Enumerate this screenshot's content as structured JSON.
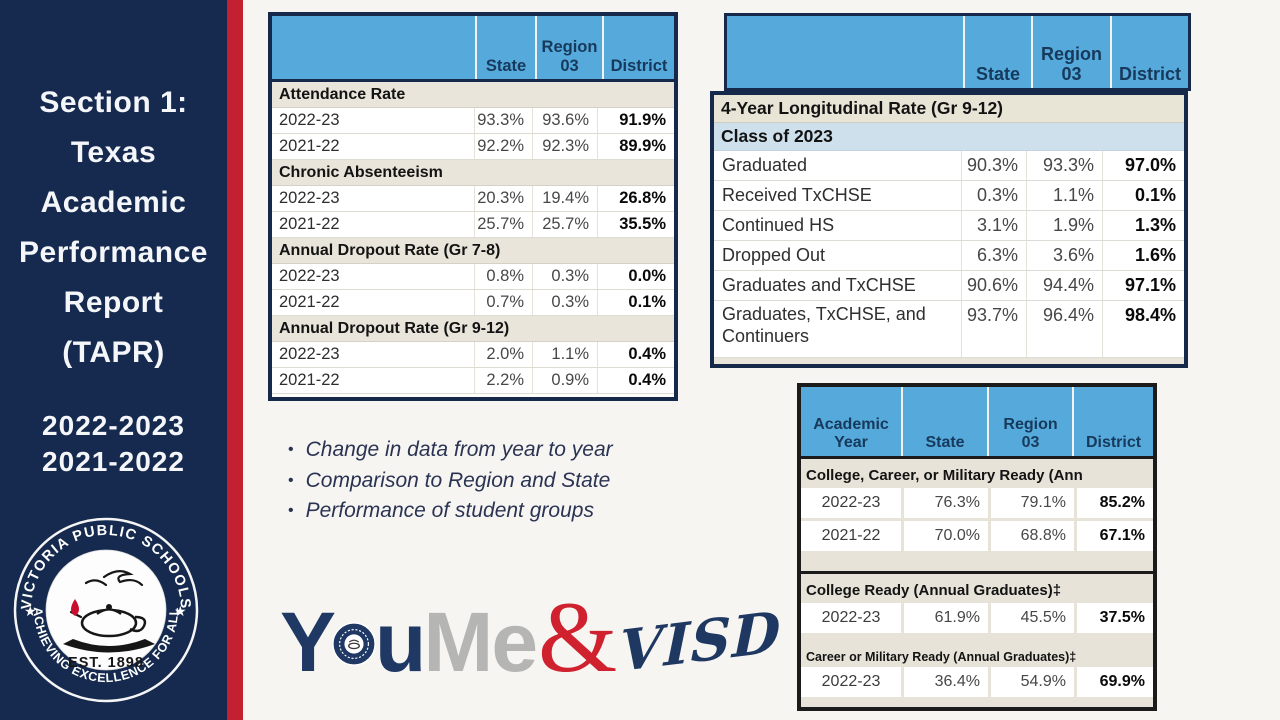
{
  "sidebar": {
    "title_lines": [
      "Section 1:",
      "Texas",
      "Academic",
      "Performance",
      "Report",
      "(TAPR)"
    ],
    "years": [
      "2022-2023",
      "2021-2022"
    ],
    "seal": {
      "arc_top": "VICTORIA PUBLIC SCHOOLS",
      "arc_bottom": "ACHIEVING EXCELLENCE FOR ALL",
      "est": "EST. 1898",
      "star": "★"
    }
  },
  "bullets": [
    "Change in data from year to year",
    "Comparison to Region and State",
    "Performance of student groups"
  ],
  "logo": {
    "you": "Y",
    "u": "u",
    "me": "Me",
    "amp": "&",
    "visd": "VISD"
  },
  "colors": {
    "sidebar_navy": "#152a4e",
    "stripe_red": "#c32032",
    "header_blue": "#55aadb",
    "header_text_navy": "#17395c",
    "section_beige": "#e9e5da",
    "class_row_blue": "#cfe0ed",
    "table_border_navy": "#16294b",
    "table_border_black": "#1b1b1b",
    "logo_red": "#d0212f",
    "logo_gray": "#b5b5b3"
  },
  "tables": {
    "rates": {
      "header": [
        "",
        "State",
        "Region\n03",
        "District"
      ],
      "body": [
        {
          "t": "sec",
          "text": "Attendance Rate"
        },
        {
          "t": "row",
          "cells": [
            "2022-23",
            "93.3%",
            "93.6%",
            "91.9%"
          ]
        },
        {
          "t": "row",
          "cells": [
            "2021-22",
            "92.2%",
            "92.3%",
            "89.9%"
          ]
        },
        {
          "t": "sec",
          "text": "Chronic Absenteeism"
        },
        {
          "t": "row",
          "cells": [
            "2022-23",
            "20.3%",
            "19.4%",
            "26.8%"
          ]
        },
        {
          "t": "row",
          "cells": [
            "2021-22",
            "25.7%",
            "25.7%",
            "35.5%"
          ]
        },
        {
          "t": "sec",
          "text": "Annual Dropout Rate (Gr 7-8)"
        },
        {
          "t": "row",
          "cells": [
            "2022-23",
            "0.8%",
            "0.3%",
            "0.0%"
          ]
        },
        {
          "t": "row",
          "cells": [
            "2021-22",
            "0.7%",
            "0.3%",
            "0.1%"
          ]
        },
        {
          "t": "sec",
          "text": "Annual Dropout Rate (Gr 9-12)"
        },
        {
          "t": "row",
          "cells": [
            "2022-23",
            "2.0%",
            "1.1%",
            "0.4%"
          ]
        },
        {
          "t": "row",
          "cells": [
            "2021-22",
            "2.2%",
            "0.9%",
            "0.4%"
          ]
        }
      ]
    },
    "longitudinal": {
      "header": [
        "",
        "State",
        "Region\n03",
        "District"
      ],
      "body": [
        {
          "t": "sec",
          "text": "4-Year Longitudinal Rate (Gr 9-12)"
        },
        {
          "t": "sec",
          "text": "Class of 2023",
          "cls": "blue"
        },
        {
          "t": "row",
          "cells": [
            "Graduated",
            "90.3%",
            "93.3%",
            "97.0%"
          ]
        },
        {
          "t": "row",
          "cells": [
            "Received TxCHSE",
            "0.3%",
            "1.1%",
            "0.1%"
          ]
        },
        {
          "t": "row",
          "cells": [
            "Continued HS",
            "3.1%",
            "1.9%",
            "1.3%"
          ]
        },
        {
          "t": "row",
          "cells": [
            "Dropped Out",
            "6.3%",
            "3.6%",
            "1.6%"
          ]
        },
        {
          "t": "row",
          "cells": [
            "Graduates and TxCHSE",
            "90.6%",
            "94.4%",
            "97.1%"
          ]
        },
        {
          "t": "row",
          "cells": [
            "Graduates, TxCHSE, and Continuers",
            "93.7%",
            "96.4%",
            "98.4%"
          ],
          "cls": "tall"
        }
      ]
    },
    "ccmr": {
      "header": [
        "Academic\nYear",
        "State",
        "Region\n03",
        "District"
      ],
      "body": [
        {
          "t": "sec",
          "text": "College, Career, or Military Ready (Ann"
        },
        {
          "t": "row",
          "cells": [
            "2022-23",
            "76.3%",
            "79.1%",
            "85.2%"
          ]
        },
        {
          "t": "row",
          "cells": [
            "2021-22",
            "70.0%",
            "68.8%",
            "67.1%"
          ]
        },
        {
          "t": "gap"
        },
        {
          "t": "hr"
        },
        {
          "t": "sec",
          "text": "College Ready (Annual Graduates)‡"
        },
        {
          "t": "row",
          "cells": [
            "2022-23",
            "61.9%",
            "45.5%",
            "37.5%"
          ]
        },
        {
          "t": "gap",
          "cls": "small"
        },
        {
          "t": "sec",
          "text": "Career or Military Ready (Annual Graduates)‡",
          "cls": "small"
        },
        {
          "t": "row",
          "cells": [
            "2022-23",
            "36.4%",
            "54.9%",
            "69.9%"
          ]
        }
      ]
    }
  }
}
